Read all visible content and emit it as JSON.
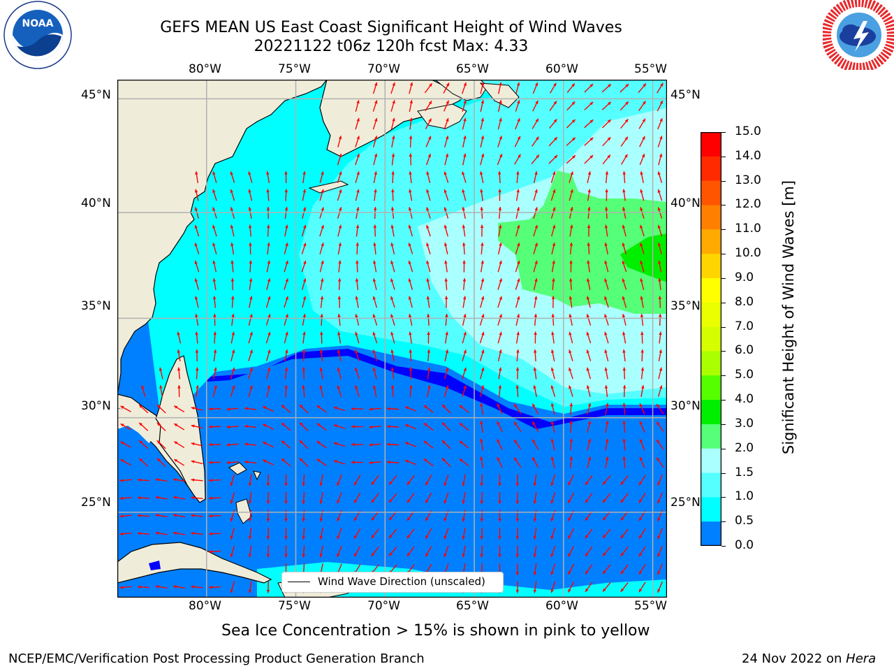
{
  "title": {
    "line1": "GEFS MEAN US East Coast Significant Height of Wind Waves",
    "line2": "20221122 t06z 120h fcst   Max: 4.33"
  },
  "logos": {
    "noaa": {
      "text": "NOAA",
      "ring_text": "NATIONAL OCEANIC AND ATMOSPHERIC ADMINISTRATION · U.S. DEPARTMENT OF COMMERCE"
    },
    "nws": {
      "ring_text": "NATIONAL WEATHER SERVICE"
    }
  },
  "map": {
    "lon_labels": [
      "80°W",
      "75°W",
      "70°W",
      "65°W",
      "60°W",
      "55°W"
    ],
    "lat_labels": [
      "45°N",
      "40°N",
      "35°N",
      "30°N",
      "25°N"
    ],
    "colors": {
      "land": "#efedda",
      "arrows": "#ff0000",
      "gridlines": "#b0b0b0"
    },
    "legend_label": "Wind Wave Direction (unscaled)",
    "extent": {
      "lon": [
        -85,
        -54.2
      ],
      "lat": [
        20.3,
        45.8
      ]
    }
  },
  "colorbar": {
    "label": "Significant Height of Wind Waves [m]",
    "ticks": [
      "15.0",
      "14.0",
      "13.0",
      "12.0",
      "11.0",
      "10.0",
      "9.0",
      "8.0",
      "7.0",
      "6.0",
      "5.0",
      "4.0",
      "3.0",
      "2.0",
      "1.5",
      "1.0",
      "0.5",
      "0.0"
    ],
    "colors_top_to_bottom": [
      "#ff0000",
      "#ff2a00",
      "#ff5500",
      "#ff8000",
      "#ffaa00",
      "#ffd500",
      "#ffff00",
      "#eaff00",
      "#d5ff00",
      "#aaff00",
      "#55ff00",
      "#00ee00",
      "#55ff77",
      "#aaffff",
      "#55ffff",
      "#00ffff",
      "#0080ff",
      "#0000ff"
    ]
  },
  "sea_ice_note": "Sea Ice Concentration > 15% is shown in pink to yellow",
  "footer": {
    "left": "NCEP/EMC/Verification Post Processing Product Generation Branch",
    "date": "24 Nov 2022 on",
    "machine": "Hera"
  }
}
